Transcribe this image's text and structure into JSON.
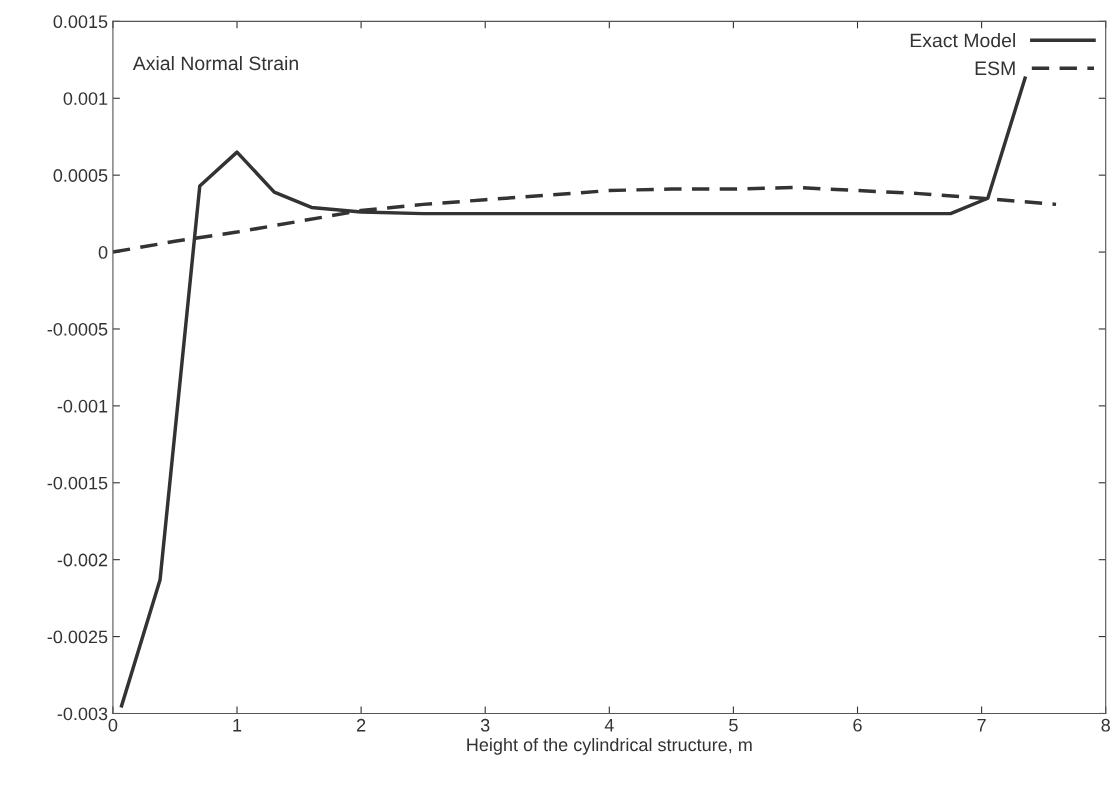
{
  "chart_data": {
    "type": "line",
    "xlabel": "Height of the cylindrical structure, m",
    "annotations": [
      "Axial Normal Strain"
    ],
    "series": [
      {
        "name": "Exact Model",
        "color": "#333333",
        "line_style": "solid",
        "x": [
          0.07,
          0.38,
          0.7,
          1.0,
          1.3,
          1.6,
          2.0,
          2.5,
          4.0,
          6.75,
          7.05,
          7.35
        ],
        "values": [
          -0.00295,
          -0.00213,
          0.00043,
          0.00065,
          0.00039,
          0.00029,
          0.00026,
          0.00025,
          0.00025,
          0.00025,
          0.00035,
          0.00113
        ]
      },
      {
        "name": "ESM",
        "color": "#333333",
        "line_style": "dashed",
        "x": [
          0.0,
          0.5,
          1.0,
          1.5,
          2.0,
          2.5,
          3.0,
          3.5,
          4.0,
          4.5,
          5.0,
          5.5,
          6.0,
          6.5,
          7.0,
          7.6
        ],
        "values": [
          0.0,
          7e-05,
          0.00013,
          0.0002,
          0.00027,
          0.00031,
          0.00034,
          0.00037,
          0.0004,
          0.00041,
          0.00041,
          0.00042,
          0.0004,
          0.00038,
          0.00035,
          0.00031
        ]
      }
    ],
    "xlim": [
      0,
      8
    ],
    "xticks": [
      0,
      1,
      2,
      3,
      4,
      5,
      6,
      7,
      8
    ],
    "ylim": [
      -0.003,
      0.0015
    ],
    "yticks": [
      -0.003,
      -0.0025,
      -0.002,
      -0.0015,
      -0.001,
      -0.0005,
      0,
      0.0005,
      0.001,
      0.0015
    ],
    "grid": false,
    "legend": "top right",
    "marker": "none"
  }
}
